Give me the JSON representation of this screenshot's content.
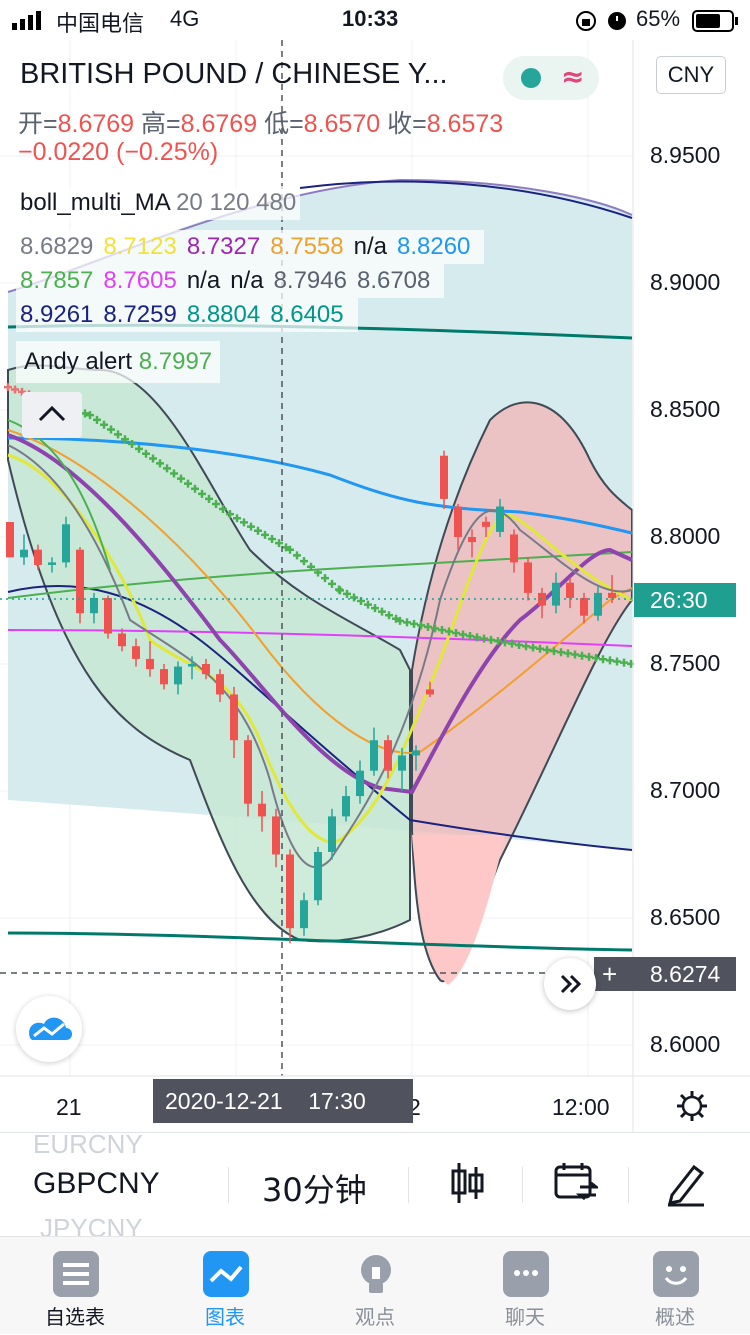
{
  "status_bar": {
    "carrier": "中国电信",
    "network": "4G",
    "time": "10:33",
    "battery": "65%"
  },
  "header": {
    "title": "BRITISH POUND / CHINESE Y...",
    "currency_button": "CNY",
    "ohlc": {
      "open_label": "开=",
      "open": "8.6769",
      "high_label": "高=",
      "high": "8.6769",
      "low_label": "低=",
      "low": "8.6570",
      "close_label": "收=",
      "close": "8.6573",
      "change": "−0.0220 (−0.25%)"
    }
  },
  "indicators": {
    "boll_title": "boll_multi_MA",
    "boll_params": "20 120 480",
    "row1": [
      "8.6829",
      "8.7123",
      "8.7327",
      "8.7558",
      "n/a",
      "8.8260"
    ],
    "row2": [
      "8.7857",
      "8.7605",
      "n/a",
      "n/a",
      "8.7946",
      "8.6708"
    ],
    "row3": [
      "8.9261",
      "8.7259",
      "8.8804",
      "8.6405"
    ],
    "alert_name": "Andy alert",
    "alert_value": "8.7997"
  },
  "colors": {
    "row1": [
      "#787b86",
      "#f0e23a",
      "#9c27b0",
      "#f0a030",
      "#131722",
      "#2196f3"
    ],
    "row2": [
      "#4caf50",
      "#e040fb",
      "#131722",
      "#131722",
      "#5a6270",
      "#5a6270"
    ],
    "row3": [
      "#1a237e",
      "#1a237e",
      "#009688",
      "#009688"
    ],
    "alert": "#4caf50",
    "up": "#26a69a",
    "down": "#ef5350",
    "accent": "#2962ff"
  },
  "price_axis": {
    "labels": [
      "8.9500",
      "8.9000",
      "8.8500",
      "8.8000",
      "8.7500",
      "8.7000",
      "8.6500",
      "8.6000"
    ],
    "current_tag": "26:30",
    "crosshair_value": "8.6274"
  },
  "time_axis": {
    "labels": [
      "21",
      "2",
      "12:00"
    ],
    "crosshair_date": "2020-12-21    17:30"
  },
  "chart_data": {
    "type": "candlestick",
    "symbol": "GBPCNY",
    "interval": "30分钟",
    "ylim": [
      8.6,
      8.97
    ],
    "candles": [
      [
        8.8059,
        8.8059,
        8.792,
        8.792
      ],
      [
        8.792,
        8.801,
        8.789,
        8.795
      ],
      [
        8.795,
        8.797,
        8.787,
        8.789
      ],
      [
        8.789,
        8.792,
        8.786,
        8.79
      ],
      [
        8.79,
        8.808,
        8.788,
        8.805
      ],
      [
        8.795,
        8.796,
        8.766,
        8.77
      ],
      [
        8.77,
        8.778,
        8.766,
        8.776
      ],
      [
        8.776,
        8.777,
        8.76,
        8.762
      ],
      [
        8.762,
        8.764,
        8.755,
        8.757
      ],
      [
        8.757,
        8.76,
        8.749,
        8.752
      ],
      [
        8.752,
        8.759,
        8.745,
        8.748
      ],
      [
        8.748,
        8.75,
        8.74,
        8.742
      ],
      [
        8.742,
        8.751,
        8.738,
        8.749
      ],
      [
        8.749,
        8.753,
        8.744,
        8.75
      ],
      [
        8.75,
        8.752,
        8.744,
        8.746
      ],
      [
        8.746,
        8.748,
        8.735,
        8.738
      ],
      [
        8.738,
        8.741,
        8.713,
        8.72
      ],
      [
        8.72,
        8.722,
        8.69,
        8.695
      ],
      [
        8.695,
        8.7,
        8.684,
        8.69
      ],
      [
        8.69,
        8.693,
        8.67,
        8.675
      ],
      [
        8.675,
        8.677,
        8.64,
        8.646
      ],
      [
        8.646,
        8.66,
        8.643,
        8.657
      ],
      [
        8.657,
        8.678,
        8.655,
        8.676
      ],
      [
        8.676,
        8.693,
        8.673,
        8.69
      ],
      [
        8.69,
        8.702,
        8.688,
        8.698
      ],
      [
        8.698,
        8.712,
        8.695,
        8.708
      ],
      [
        8.708,
        8.725,
        8.706,
        8.72
      ],
      [
        8.72,
        8.722,
        8.705,
        8.708
      ],
      [
        8.708,
        8.717,
        8.7,
        8.714
      ],
      [
        8.714,
        8.718,
        8.708,
        8.716
      ],
      [
        8.74,
        8.743,
        8.737,
        8.738
      ],
      [
        8.832,
        8.834,
        8.811,
        8.815
      ],
      [
        8.812,
        8.813,
        8.795,
        8.8
      ],
      [
        8.8,
        8.803,
        8.792,
        8.798
      ],
      [
        8.806,
        8.808,
        8.8,
        8.804
      ],
      [
        8.802,
        8.815,
        8.8,
        8.812
      ],
      [
        8.801,
        8.803,
        8.786,
        8.79
      ],
      [
        8.79,
        8.792,
        8.775,
        8.778
      ],
      [
        8.778,
        8.78,
        8.768,
        8.773
      ],
      [
        8.773,
        8.786,
        8.77,
        8.782
      ],
      [
        8.782,
        8.784,
        8.772,
        8.776
      ],
      [
        8.776,
        8.778,
        8.766,
        8.769
      ],
      [
        8.769,
        8.781,
        8.767,
        8.778
      ],
      [
        8.778,
        8.785,
        8.774,
        8.776
      ]
    ]
  },
  "toolbar": {
    "symbol": "GBPCNY",
    "ghost_above": "EURCNY",
    "ghost_below": "JPYCNY",
    "interval": "30分钟"
  },
  "tabs": [
    {
      "label": "自选表",
      "active": false
    },
    {
      "label": "图表",
      "active": true
    },
    {
      "label": "观点",
      "active": false
    },
    {
      "label": "聊天",
      "active": false
    },
    {
      "label": "概述",
      "active": false
    }
  ]
}
